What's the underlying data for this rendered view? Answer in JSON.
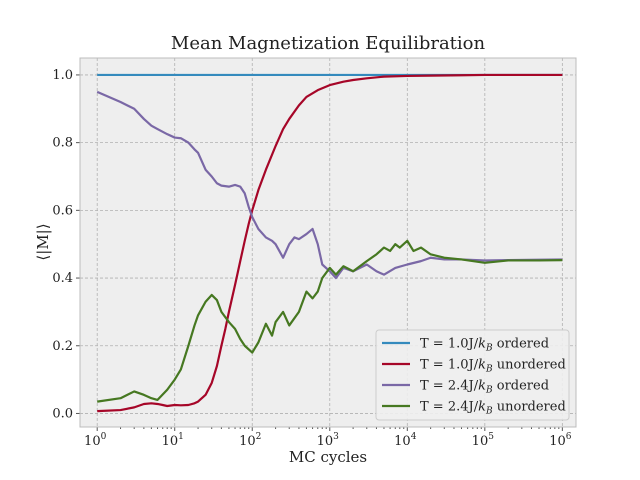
{
  "chart_data": {
    "type": "line",
    "title": "Mean Magnetization Equilibration",
    "xlabel": "MC cycles",
    "ylabel": "⟨|M|⟩",
    "xscale": "log",
    "xlim": [
      0.6,
      1500000
    ],
    "ylim": [
      -0.04,
      1.05
    ],
    "xticks": [
      {
        "value": 1,
        "base": "10",
        "exp": "0"
      },
      {
        "value": 10,
        "base": "10",
        "exp": "1"
      },
      {
        "value": 100,
        "base": "10",
        "exp": "2"
      },
      {
        "value": 1000,
        "base": "10",
        "exp": "3"
      },
      {
        "value": 10000,
        "base": "10",
        "exp": "4"
      },
      {
        "value": 100000,
        "base": "10",
        "exp": "5"
      },
      {
        "value": 1000000,
        "base": "10",
        "exp": "6"
      }
    ],
    "yticks": [
      {
        "value": 0.0,
        "label": "0.0"
      },
      {
        "value": 0.2,
        "label": "0.2"
      },
      {
        "value": 0.4,
        "label": "0.4"
      },
      {
        "value": 0.6,
        "label": "0.6"
      },
      {
        "value": 0.8,
        "label": "0.8"
      },
      {
        "value": 1.0,
        "label": "1.0"
      }
    ],
    "grid": true,
    "legend_position": "bottom-right",
    "series": [
      {
        "name": "T = 1.0J/kB ordered",
        "legend": {
          "prefix": "T = 1.0J/",
          "k": "k",
          "sub": "B",
          "suffix": " ordered"
        },
        "color": "#348abd",
        "x": [
          1,
          10,
          100,
          1000,
          10000,
          100000,
          1000000
        ],
        "y": [
          1.0,
          1.0,
          1.0,
          1.0,
          1.0,
          1.0,
          1.0
        ]
      },
      {
        "name": "T = 1.0J/kB unordered",
        "legend": {
          "prefix": "T = 1.0J/",
          "k": "k",
          "sub": "B",
          "suffix": " unordered"
        },
        "color": "#a60628",
        "x": [
          1,
          2,
          3,
          4,
          5,
          6,
          7,
          8,
          10,
          12,
          15,
          18,
          20,
          25,
          30,
          35,
          40,
          45,
          50,
          60,
          70,
          80,
          90,
          100,
          120,
          150,
          200,
          250,
          300,
          400,
          500,
          700,
          1000,
          1500,
          2000,
          3000,
          5000,
          10000,
          20000,
          50000,
          100000,
          1000000
        ],
        "y": [
          0.007,
          0.01,
          0.018,
          0.028,
          0.03,
          0.028,
          0.025,
          0.022,
          0.025,
          0.024,
          0.025,
          0.03,
          0.035,
          0.055,
          0.09,
          0.14,
          0.2,
          0.25,
          0.3,
          0.38,
          0.45,
          0.51,
          0.56,
          0.6,
          0.66,
          0.72,
          0.79,
          0.84,
          0.87,
          0.91,
          0.935,
          0.955,
          0.97,
          0.98,
          0.985,
          0.99,
          0.995,
          0.997,
          0.998,
          0.999,
          1.0,
          1.0
        ]
      },
      {
        "name": "T = 2.4J/kB ordered",
        "legend": {
          "prefix": "T = 2.4J/",
          "k": "k",
          "sub": "B",
          "suffix": " ordered"
        },
        "color": "#7a68a6",
        "x": [
          1,
          2,
          3,
          4,
          5,
          6,
          8,
          10,
          12,
          15,
          18,
          20,
          25,
          30,
          35,
          40,
          50,
          60,
          70,
          80,
          90,
          100,
          120,
          150,
          180,
          200,
          250,
          300,
          350,
          400,
          500,
          600,
          700,
          800,
          1000,
          1200,
          1500,
          2000,
          3000,
          4000,
          5000,
          7000,
          10000,
          15000,
          20000,
          30000,
          50000,
          100000,
          200000,
          500000,
          1000000
        ],
        "y": [
          0.95,
          0.92,
          0.9,
          0.87,
          0.85,
          0.84,
          0.825,
          0.815,
          0.813,
          0.8,
          0.78,
          0.77,
          0.72,
          0.7,
          0.68,
          0.673,
          0.67,
          0.675,
          0.67,
          0.65,
          0.61,
          0.58,
          0.545,
          0.52,
          0.51,
          0.5,
          0.46,
          0.5,
          0.52,
          0.515,
          0.53,
          0.545,
          0.5,
          0.44,
          0.42,
          0.4,
          0.43,
          0.42,
          0.44,
          0.42,
          0.41,
          0.43,
          0.44,
          0.45,
          0.46,
          0.455,
          0.455,
          0.452,
          0.453,
          0.454,
          0.455
        ]
      },
      {
        "name": "T = 2.4J/kB unordered",
        "legend": {
          "prefix": "T = 2.4J/",
          "k": "k",
          "sub": "B",
          "suffix": " unordered"
        },
        "color": "#467821",
        "x": [
          1,
          2,
          3,
          4,
          5,
          6,
          8,
          10,
          12,
          15,
          18,
          20,
          25,
          30,
          35,
          40,
          50,
          60,
          70,
          80,
          100,
          120,
          150,
          180,
          200,
          250,
          300,
          400,
          500,
          600,
          700,
          800,
          1000,
          1200,
          1500,
          2000,
          3000,
          4000,
          5000,
          6000,
          7000,
          8000,
          10000,
          12000,
          15000,
          20000,
          30000,
          50000,
          100000,
          200000,
          500000,
          1000000
        ],
        "y": [
          0.035,
          0.045,
          0.065,
          0.055,
          0.045,
          0.04,
          0.07,
          0.1,
          0.13,
          0.2,
          0.26,
          0.29,
          0.33,
          0.35,
          0.335,
          0.3,
          0.27,
          0.25,
          0.22,
          0.2,
          0.18,
          0.21,
          0.265,
          0.23,
          0.27,
          0.3,
          0.26,
          0.3,
          0.36,
          0.34,
          0.36,
          0.4,
          0.43,
          0.41,
          0.435,
          0.42,
          0.45,
          0.47,
          0.49,
          0.48,
          0.5,
          0.49,
          0.51,
          0.48,
          0.49,
          0.47,
          0.46,
          0.455,
          0.445,
          0.452,
          0.452,
          0.453
        ]
      }
    ]
  }
}
